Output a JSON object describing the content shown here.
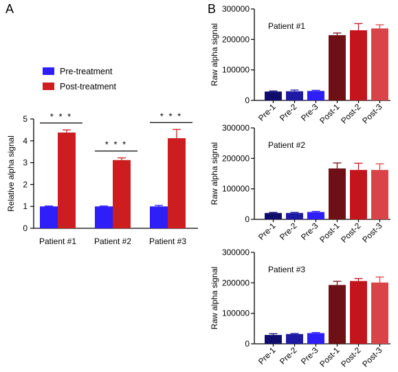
{
  "panel_labels": [
    "A",
    "B"
  ],
  "chart_data": [
    {
      "panel": "A",
      "type": "bar",
      "ylabel": "Relative alpha signal",
      "ylim": [
        0,
        5
      ],
      "yticks": [
        "0",
        "1",
        "2",
        "3",
        "4",
        "5"
      ],
      "categories": [
        "Patient #1",
        "Patient #2",
        "Patient #3"
      ],
      "legend": {
        "placement": "top-left"
      },
      "series": [
        {
          "name": "Pre-treatment",
          "color": "#2e1ef7",
          "values": [
            1.0,
            1.0,
            1.0
          ],
          "errors": [
            0.02,
            0.02,
            0.05
          ]
        },
        {
          "name": "Post-treatment",
          "color": "#cc1e21",
          "values": [
            4.38,
            3.12,
            4.12
          ],
          "errors": [
            0.12,
            0.1,
            0.4
          ]
        }
      ],
      "annotations": [
        "* * *",
        "* * *",
        "* * *"
      ]
    },
    {
      "panel": "B",
      "type": "bar",
      "title": "Patient #1",
      "ylabel": "Raw alpha signal",
      "ylim": [
        0,
        300000
      ],
      "yticks": [
        "0",
        "100000",
        "200000",
        "300000"
      ],
      "categories": [
        "Pre-1",
        "Pre-2",
        "Pre-3",
        "Post-1",
        "Post-2",
        "Post-3"
      ],
      "colors": [
        "#100c6b",
        "#1f1aa3",
        "#2e1ef7",
        "#6e1016",
        "#c4151d",
        "#d84447"
      ],
      "values": [
        29000,
        30000,
        31000,
        214000,
        230000,
        236000
      ],
      "errors": [
        2000,
        4000,
        2000,
        7000,
        22000,
        12000
      ]
    },
    {
      "panel": "B",
      "type": "bar",
      "title": "Patient #2",
      "ylabel": "Raw alpha signal",
      "ylim": [
        0,
        300000
      ],
      "yticks": [
        "0",
        "100000",
        "200000",
        "300000"
      ],
      "categories": [
        "Pre-1",
        "Pre-2",
        "Pre-3",
        "Post-1",
        "Post-2",
        "Post-3"
      ],
      "colors": [
        "#100c6b",
        "#1f1aa3",
        "#2e1ef7",
        "#6e1016",
        "#c4151d",
        "#d84447"
      ],
      "values": [
        21000,
        21000,
        24000,
        167000,
        162000,
        162000
      ],
      "errors": [
        2000,
        2000,
        2000,
        18000,
        22000,
        20000
      ]
    },
    {
      "panel": "B",
      "type": "bar",
      "title": "Patient #3",
      "ylabel": "Raw alpha signal",
      "ylim": [
        0,
        300000
      ],
      "yticks": [
        "0",
        "100000",
        "200000",
        "300000"
      ],
      "categories": [
        "Pre-1",
        "Pre-2",
        "Pre-3",
        "Post-1",
        "Post-2",
        "Post-3"
      ],
      "colors": [
        "#100c6b",
        "#1f1aa3",
        "#2e1ef7",
        "#6e1016",
        "#c4151d",
        "#d84447"
      ],
      "values": [
        29000,
        32000,
        35000,
        193000,
        206000,
        201000
      ],
      "errors": [
        4000,
        2000,
        2000,
        12000,
        8000,
        18000
      ]
    }
  ]
}
